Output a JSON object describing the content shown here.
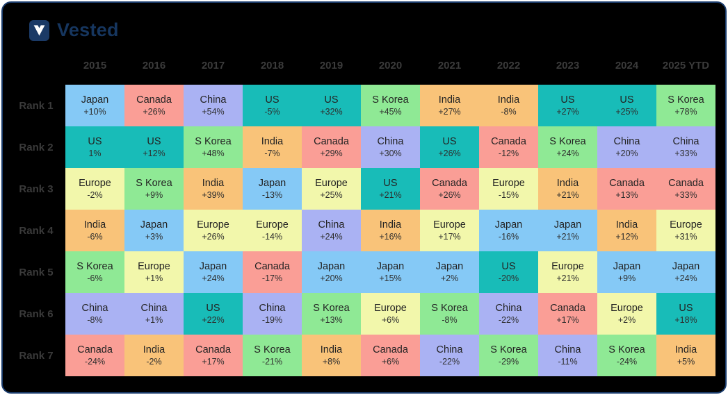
{
  "page": {
    "background": "#ffffff",
    "card_background": "#000000",
    "card_border_color": "#1d3f70"
  },
  "brand": {
    "name": "Vested",
    "logo_letter": "V",
    "logo_background": "#1b3a66",
    "logo_letter_color": "#ffffff",
    "wordmark_color": "#16365f"
  },
  "chart_data": {
    "type": "heatmap",
    "columns": [
      "2015",
      "2016",
      "2017",
      "2018",
      "2019",
      "2020",
      "2021",
      "2022",
      "2023",
      "2024",
      "2025 YTD"
    ],
    "rows": [
      "Rank 1",
      "Rank 2",
      "Rank 3",
      "Rank 4",
      "Rank 5",
      "Rank 6",
      "Rank 7"
    ],
    "palette": {
      "Japan": "#85C9F6",
      "Canada": "#FA9E96",
      "China": "#AAB2F3",
      "US": "#18BCB8",
      "S Korea": "#8FE995",
      "India": "#F9C379",
      "Europe": "#F2F7AB"
    },
    "cells": [
      [
        {
          "country": "Japan",
          "value": "+10%"
        },
        {
          "country": "Canada",
          "value": "+26%"
        },
        {
          "country": "China",
          "value": "+54%"
        },
        {
          "country": "US",
          "value": "-5%"
        },
        {
          "country": "US",
          "value": "+32%"
        },
        {
          "country": "S Korea",
          "value": "+45%"
        },
        {
          "country": "India",
          "value": "+27%"
        },
        {
          "country": "India",
          "value": "-8%"
        },
        {
          "country": "US",
          "value": "+27%"
        },
        {
          "country": "US",
          "value": "+25%"
        },
        {
          "country": "S Korea",
          "value": "+78%"
        }
      ],
      [
        {
          "country": "US",
          "value": "1%"
        },
        {
          "country": "US",
          "value": "+12%"
        },
        {
          "country": "S Korea",
          "value": "+48%"
        },
        {
          "country": "India",
          "value": "-7%"
        },
        {
          "country": "Canada",
          "value": "+29%"
        },
        {
          "country": "China",
          "value": "+30%"
        },
        {
          "country": "US",
          "value": "+26%"
        },
        {
          "country": "Canada",
          "value": "-12%"
        },
        {
          "country": "S Korea",
          "value": "+24%"
        },
        {
          "country": "China",
          "value": "+20%"
        },
        {
          "country": "China",
          "value": "+33%"
        }
      ],
      [
        {
          "country": "Europe",
          "value": "-2%"
        },
        {
          "country": "S Korea",
          "value": "+9%"
        },
        {
          "country": "India",
          "value": "+39%"
        },
        {
          "country": "Japan",
          "value": "-13%"
        },
        {
          "country": "Europe",
          "value": "+25%"
        },
        {
          "country": "US",
          "value": "+21%"
        },
        {
          "country": "Canada",
          "value": "+26%"
        },
        {
          "country": "Europe",
          "value": "-15%"
        },
        {
          "country": "India",
          "value": "+21%"
        },
        {
          "country": "Canada",
          "value": "+13%"
        },
        {
          "country": "Canada",
          "value": "+33%"
        }
      ],
      [
        {
          "country": "India",
          "value": "-6%"
        },
        {
          "country": "Japan",
          "value": "+3%"
        },
        {
          "country": "Europe",
          "value": "+26%"
        },
        {
          "country": "Europe",
          "value": "-14%"
        },
        {
          "country": "China",
          "value": "+24%"
        },
        {
          "country": "India",
          "value": "+16%"
        },
        {
          "country": "Europe",
          "value": "+17%"
        },
        {
          "country": "Japan",
          "value": "-16%"
        },
        {
          "country": "Japan",
          "value": "+21%"
        },
        {
          "country": "India",
          "value": "+12%"
        },
        {
          "country": "Europe",
          "value": "+31%"
        }
      ],
      [
        {
          "country": "S Korea",
          "value": "-6%"
        },
        {
          "country": "Europe",
          "value": "+1%"
        },
        {
          "country": "Japan",
          "value": "+24%"
        },
        {
          "country": "Canada",
          "value": "-17%"
        },
        {
          "country": "Japan",
          "value": "+20%"
        },
        {
          "country": "Japan",
          "value": "+15%"
        },
        {
          "country": "Japan",
          "value": "+2%"
        },
        {
          "country": "US",
          "value": "-20%"
        },
        {
          "country": "Europe",
          "value": "+21%"
        },
        {
          "country": "Japan",
          "value": "+9%"
        },
        {
          "country": "Japan",
          "value": "+24%"
        }
      ],
      [
        {
          "country": "China",
          "value": "-8%"
        },
        {
          "country": "China",
          "value": "+1%"
        },
        {
          "country": "US",
          "value": "+22%"
        },
        {
          "country": "China",
          "value": "-19%"
        },
        {
          "country": "S Korea",
          "value": "+13%"
        },
        {
          "country": "Europe",
          "value": "+6%"
        },
        {
          "country": "S Korea",
          "value": "-8%"
        },
        {
          "country": "China",
          "value": "-22%"
        },
        {
          "country": "Canada",
          "value": "+17%"
        },
        {
          "country": "Europe",
          "value": "+2%"
        },
        {
          "country": "US",
          "value": "+18%"
        }
      ],
      [
        {
          "country": "Canada",
          "value": "-24%"
        },
        {
          "country": "India",
          "value": "-2%"
        },
        {
          "country": "Canada",
          "value": "+17%"
        },
        {
          "country": "S Korea",
          "value": "-21%"
        },
        {
          "country": "India",
          "value": "+8%"
        },
        {
          "country": "Canada",
          "value": "+6%"
        },
        {
          "country": "China",
          "value": "-22%"
        },
        {
          "country": "S Korea",
          "value": "-29%"
        },
        {
          "country": "China",
          "value": "-11%"
        },
        {
          "country": "S Korea",
          "value": "-24%"
        },
        {
          "country": "India",
          "value": "+5%"
        }
      ]
    ]
  }
}
